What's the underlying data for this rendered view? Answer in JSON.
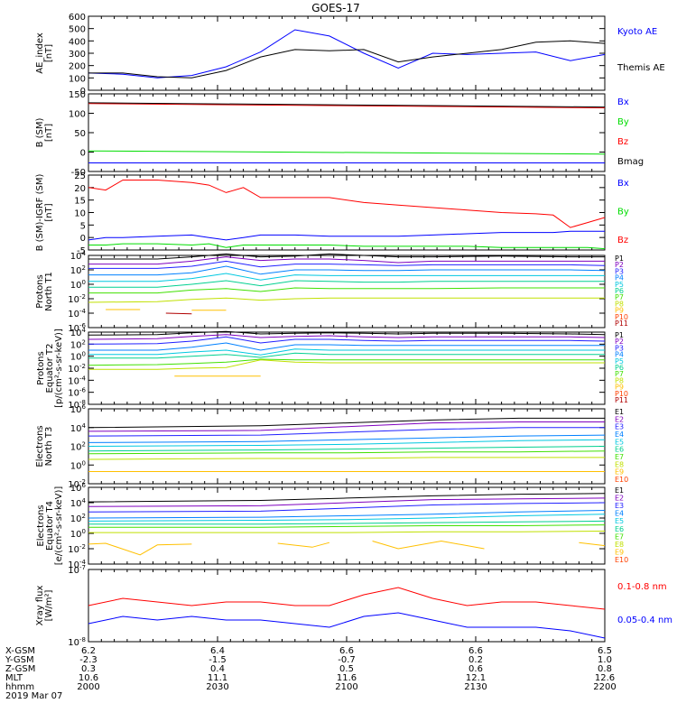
{
  "title": "GOES-17",
  "colors": {
    "black": "#000000",
    "blue": "#0000ff",
    "green": "#00dd00",
    "red": "#ff0000",
    "palette11": [
      "#000000",
      "#7f00bf",
      "#2020ff",
      "#0080ff",
      "#00c8e0",
      "#00d090",
      "#40e000",
      "#c0e000",
      "#ffc000",
      "#ff4000",
      "#b00000"
    ]
  },
  "chart_data": [
    {
      "type": "line",
      "id": "ae",
      "ylabel": [
        "AE_index",
        "[nT]"
      ],
      "ylim": [
        0,
        600
      ],
      "yticks": [
        "0",
        "100",
        "200",
        "300",
        "400",
        "500",
        "600"
      ],
      "x": [
        0,
        4,
        8,
        12,
        16,
        20,
        24,
        28,
        32,
        36,
        40,
        44,
        48,
        52,
        56,
        60
      ],
      "series": [
        {
          "name": "Kyoto AE",
          "color": "#0000ff",
          "values": [
            140,
            130,
            100,
            120,
            190,
            310,
            490,
            440,
            300,
            180,
            300,
            290,
            300,
            310,
            240,
            290
          ]
        },
        {
          "name": "Themis AE",
          "color": "#000000",
          "values": [
            140,
            140,
            110,
            100,
            160,
            270,
            330,
            320,
            330,
            230,
            270,
            300,
            330,
            390,
            400,
            380
          ]
        }
      ]
    },
    {
      "type": "line",
      "id": "bsm",
      "ylabel": [
        "B (SM)",
        "[nT]"
      ],
      "ylim": [
        -50,
        150
      ],
      "yticks": [
        "-50",
        "0",
        "50",
        "100",
        "150"
      ],
      "x": [
        0,
        60
      ],
      "series": [
        {
          "name": "Bx",
          "color": "#0000ff",
          "values": [
            -28,
            -28
          ]
        },
        {
          "name": "By",
          "color": "#00dd00",
          "values": [
            3,
            -5
          ]
        },
        {
          "name": "Bz",
          "color": "#ff0000",
          "values": [
            125,
            114
          ]
        },
        {
          "name": "Bmag",
          "color": "#000000",
          "values": [
            127,
            116
          ]
        }
      ]
    },
    {
      "type": "line",
      "id": "bigrf",
      "ylabel": [
        "B (SM)-IGRF (SM)",
        "[nT]"
      ],
      "ylim": [
        -5,
        25
      ],
      "yticks": [
        "-5",
        "0",
        "5",
        "10",
        "15",
        "20",
        "25"
      ],
      "x": [
        0,
        2,
        4,
        8,
        12,
        14,
        16,
        18,
        20,
        24,
        28,
        32,
        36,
        40,
        44,
        48,
        52,
        54,
        56,
        58,
        60
      ],
      "series": [
        {
          "name": "Bx",
          "color": "#0000ff",
          "values": [
            -1,
            0,
            0,
            0.5,
            1,
            0,
            -1,
            0,
            1,
            1,
            0.5,
            0.5,
            0.5,
            1,
            1.5,
            2,
            2,
            2,
            2.5,
            2.5,
            2.5
          ]
        },
        {
          "name": "By",
          "color": "#00dd00",
          "values": [
            -3,
            -3,
            -2.5,
            -2.5,
            -3,
            -2.5,
            -4,
            -3,
            -3,
            -3,
            -3,
            -3.5,
            -3.5,
            -3.5,
            -3.5,
            -4,
            -4,
            -4,
            -4,
            -4,
            -4.5
          ]
        },
        {
          "name": "Bz",
          "color": "#ff0000",
          "values": [
            20,
            19,
            23,
            23,
            22,
            21,
            18,
            20,
            16,
            16,
            16,
            14,
            13,
            12,
            11,
            10,
            9.5,
            9,
            4,
            6,
            8
          ]
        }
      ]
    },
    {
      "type": "line",
      "id": "pn",
      "ylabel": [
        "Protons",
        "North T1"
      ],
      "yscale": "log",
      "ylim": [
        -6,
        4
      ],
      "yticks": [
        "10^-6",
        "10^-4",
        "10^-2",
        "10^0",
        "10^2",
        "10^4"
      ],
      "labels": [
        "P1",
        "P2",
        "P3",
        "P4",
        "P5",
        "P6",
        "P7",
        "P8",
        "P9",
        "P10",
        "P11"
      ],
      "x": [
        0,
        8,
        12,
        16,
        20,
        24,
        28,
        32,
        36,
        40,
        48,
        56,
        60
      ],
      "series": [
        {
          "name": "P1",
          "values": [
            3.5,
            3.5,
            3.8,
            4.2,
            3.8,
            3.9,
            4.2,
            4.0,
            3.8,
            3.8,
            3.9,
            3.8,
            3.8
          ]
        },
        {
          "name": "P2",
          "values": [
            2.8,
            2.8,
            3.2,
            3.8,
            3.3,
            3.5,
            3.5,
            3.3,
            3.0,
            3.2,
            3.2,
            3.2,
            3.2
          ]
        },
        {
          "name": "P3",
          "values": [
            2.2,
            2.2,
            2.5,
            3.2,
            2.4,
            2.8,
            2.8,
            2.7,
            2.6,
            2.7,
            2.7,
            2.7,
            2.6
          ]
        },
        {
          "name": "P4",
          "values": [
            1.3,
            1.3,
            1.6,
            2.5,
            1.4,
            2.0,
            2.0,
            1.9,
            1.9,
            2.0,
            2.0,
            2.0,
            1.9
          ]
        },
        {
          "name": "P5",
          "values": [
            0.4,
            0.4,
            0.8,
            1.5,
            0.6,
            1.3,
            1.2,
            1.2,
            1.2,
            1.2,
            1.2,
            1.2,
            1.2
          ]
        },
        {
          "name": "P6",
          "values": [
            -0.4,
            -0.4,
            0.0,
            0.5,
            -0.2,
            0.5,
            0.4,
            0.3,
            0.3,
            0.4,
            0.4,
            0.4,
            0.4
          ]
        },
        {
          "name": "P7",
          "values": [
            -1.2,
            -1.2,
            -0.8,
            -0.6,
            -1.0,
            -0.5,
            -0.6,
            -0.6,
            -0.6,
            -0.6,
            -0.5,
            -0.5,
            -0.5
          ]
        },
        {
          "name": "P8",
          "values": [
            -2.5,
            -2.4,
            -2.1,
            -1.9,
            -2.2,
            -2.0,
            -1.9,
            -1.9,
            -1.9,
            -1.9,
            -1.9,
            -1.9,
            -1.9
          ]
        }
      ],
      "segments": [
        {
          "name": "P9",
          "x": [
            2,
            6
          ],
          "y": [
            -3.5,
            -3.5
          ]
        },
        {
          "name": "P9",
          "x": [
            12,
            16
          ],
          "y": [
            -3.6,
            -3.6
          ]
        },
        {
          "name": "P11",
          "x": [
            9,
            12
          ],
          "y": [
            -4.0,
            -4.1
          ]
        }
      ]
    },
    {
      "type": "line",
      "id": "pe",
      "ylabel": [
        "Protons",
        "Equator T2",
        "[p/(cm²-s-sr-keV)]"
      ],
      "yscale": "log",
      "ylim": [
        -8,
        4
      ],
      "yticks": [
        "10^-8",
        "10^-6",
        "10^-4",
        "10^-2",
        "10^0",
        "10^2",
        "10^4"
      ],
      "labels": [
        "P1",
        "P2",
        "P3",
        "P4",
        "P5",
        "P6",
        "P7",
        "P8",
        "P9",
        "P10",
        "P11"
      ],
      "x": [
        0,
        8,
        12,
        16,
        20,
        24,
        28,
        32,
        36,
        40,
        48,
        56,
        60
      ],
      "series": [
        {
          "name": "P1",
          "values": [
            3.5,
            3.6,
            3.9,
            4.1,
            3.7,
            3.8,
            3.9,
            3.8,
            3.7,
            3.8,
            3.8,
            3.7,
            3.6
          ]
        },
        {
          "name": "P2",
          "values": [
            2.8,
            2.9,
            3.3,
            3.6,
            3.1,
            3.3,
            3.4,
            3.2,
            3.1,
            3.2,
            3.2,
            3.2,
            3.1
          ]
        },
        {
          "name": "P3",
          "values": [
            2.0,
            2.1,
            2.5,
            3.2,
            2.2,
            2.8,
            2.8,
            2.6,
            2.5,
            2.6,
            2.6,
            2.6,
            2.5
          ]
        },
        {
          "name": "P4",
          "values": [
            1.0,
            1.0,
            1.5,
            2.2,
            1.0,
            1.9,
            1.9,
            1.8,
            1.8,
            1.8,
            1.8,
            1.8,
            1.8
          ]
        },
        {
          "name": "P5",
          "values": [
            0.3,
            0.3,
            0.7,
            1.0,
            0.2,
            1.2,
            1.0,
            1.0,
            1.0,
            1.0,
            1.0,
            1.0,
            1.0
          ]
        },
        {
          "name": "P6",
          "values": [
            -0.3,
            -0.3,
            0.0,
            0.3,
            -0.2,
            0.5,
            0.3,
            0.3,
            0.3,
            0.3,
            0.3,
            0.3,
            0.3
          ]
        },
        {
          "name": "P7",
          "values": [
            -1.5,
            -1.4,
            -1.2,
            -1.0,
            -0.5,
            -0.6,
            -0.6,
            -0.6,
            -0.6,
            -0.6,
            -0.6,
            -0.6,
            -0.6
          ]
        },
        {
          "name": "P8",
          "values": [
            -2.2,
            -2.2,
            -2.0,
            -1.9,
            -0.6,
            -1.0,
            -1.1,
            -1.1,
            -1.1,
            -1.1,
            -1.1,
            -1.1,
            -1.1
          ]
        }
      ],
      "segments": [
        {
          "name": "P9",
          "x": [
            10,
            20
          ],
          "y": [
            -3.3,
            -3.3
          ]
        }
      ]
    },
    {
      "type": "line",
      "id": "en",
      "ylabel": [
        "Electrons",
        "North T3"
      ],
      "yscale": "log",
      "ylim": [
        -2,
        6
      ],
      "yticks": [
        "10^-2",
        "10^0",
        "10^2",
        "10^4",
        "10^6"
      ],
      "labels": [
        "E1",
        "E2",
        "E3",
        "E4",
        "E5",
        "E6",
        "E7",
        "E8",
        "E9",
        "E10"
      ],
      "x": [
        0,
        20,
        30,
        40,
        50,
        60
      ],
      "series": [
        {
          "name": "E1",
          "values": [
            4.0,
            4.2,
            4.5,
            4.8,
            5.0,
            5.0
          ]
        },
        {
          "name": "E2",
          "values": [
            3.6,
            3.7,
            4.1,
            4.5,
            4.6,
            4.6
          ]
        },
        {
          "name": "E3",
          "values": [
            3.1,
            3.2,
            3.5,
            3.8,
            4.0,
            4.0
          ]
        },
        {
          "name": "E4",
          "values": [
            2.4,
            2.5,
            2.7,
            2.9,
            3.1,
            3.2
          ]
        },
        {
          "name": "E5",
          "values": [
            2.0,
            2.1,
            2.2,
            2.4,
            2.6,
            2.7
          ]
        },
        {
          "name": "E6",
          "values": [
            1.5,
            1.6,
            1.7,
            1.8,
            1.9,
            2.0
          ]
        },
        {
          "name": "E7",
          "values": [
            1.2,
            1.3,
            1.3,
            1.4,
            1.4,
            1.5
          ]
        },
        {
          "name": "E8",
          "values": [
            0.6,
            0.7,
            0.7,
            0.8,
            0.8,
            0.8
          ]
        },
        {
          "name": "E9",
          "values": [
            -0.7,
            -0.7,
            -0.7,
            -0.7,
            -0.7,
            -0.7
          ]
        }
      ]
    },
    {
      "type": "line",
      "id": "ee",
      "ylabel": [
        "Electrons",
        "Equator T4",
        "[e/(cm²-s-sr-keV)]"
      ],
      "yscale": "log",
      "ylim": [
        -4,
        6
      ],
      "yticks": [
        "10^-4",
        "10^-2",
        "10^0",
        "10^2",
        "10^4",
        "10^6"
      ],
      "labels": [
        "E1",
        "E2",
        "E3",
        "E4",
        "E5",
        "E6",
        "E7",
        "E8",
        "E9",
        "E10"
      ],
      "x": [
        0,
        20,
        30,
        40,
        50,
        60
      ],
      "series": [
        {
          "name": "E1",
          "values": [
            4.1,
            4.3,
            4.6,
            4.9,
            5.1,
            5.2
          ]
        },
        {
          "name": "E2",
          "values": [
            3.5,
            3.6,
            4.0,
            4.4,
            4.5,
            4.6
          ]
        },
        {
          "name": "E3",
          "values": [
            2.8,
            2.9,
            3.3,
            3.7,
            3.9,
            4.0
          ]
        },
        {
          "name": "E4",
          "values": [
            2.0,
            2.1,
            2.3,
            2.5,
            2.8,
            3.0
          ]
        },
        {
          "name": "E5",
          "values": [
            1.6,
            1.7,
            1.8,
            2.0,
            2.3,
            2.5
          ]
        },
        {
          "name": "E6",
          "values": [
            1.2,
            1.2,
            1.3,
            1.4,
            1.5,
            1.6
          ]
        },
        {
          "name": "E7",
          "values": [
            0.8,
            0.8,
            0.9,
            1.0,
            1.0,
            1.1
          ]
        },
        {
          "name": "E8",
          "values": [
            0.1,
            0.1,
            0.1,
            0.2,
            0.2,
            0.3
          ]
        }
      ],
      "segments": [
        {
          "name": "E9",
          "x": [
            0,
            2,
            6,
            8,
            12
          ],
          "y": [
            -1.4,
            -1.3,
            -2.8,
            -1.5,
            -1.4
          ]
        },
        {
          "name": "E9",
          "x": [
            22,
            26,
            28
          ],
          "y": [
            -1.3,
            -1.8,
            -1.2
          ]
        },
        {
          "name": "E9",
          "x": [
            33,
            36,
            41,
            46
          ],
          "y": [
            -1.0,
            -2.0,
            -1.0,
            -2.0
          ]
        },
        {
          "name": "E9",
          "x": [
            57,
            60
          ],
          "y": [
            -1.2,
            -1.6
          ]
        }
      ]
    },
    {
      "type": "line",
      "id": "xray",
      "ylabel": [
        "Xray flux",
        "[W/m²]"
      ],
      "yscale": "log",
      "ylim": [
        -8,
        -7
      ],
      "yticks": [
        "10^-8",
        "10^-7"
      ],
      "x": [
        0,
        4,
        8,
        12,
        16,
        20,
        24,
        28,
        32,
        36,
        40,
        44,
        48,
        52,
        56,
        60
      ],
      "series": [
        {
          "name": "0.1-0.8 nm",
          "color": "#ff0000",
          "values": [
            -7.5,
            -7.4,
            -7.45,
            -7.5,
            -7.45,
            -7.45,
            -7.5,
            -7.5,
            -7.35,
            -7.25,
            -7.4,
            -7.5,
            -7.45,
            -7.45,
            -7.5,
            -7.55
          ]
        },
        {
          "name": "0.05-0.4 nm",
          "color": "#0000ff",
          "values": [
            -7.75,
            -7.65,
            -7.7,
            -7.65,
            -7.7,
            -7.7,
            -7.75,
            -7.8,
            -7.65,
            -7.6,
            -7.7,
            -7.8,
            -7.8,
            -7.8,
            -7.85,
            -7.95
          ]
        }
      ]
    }
  ],
  "xaxis": {
    "rows": [
      {
        "label": "X-GSM",
        "values": [
          "6.2",
          "6.4",
          "6.6",
          "6.6",
          "6.5"
        ]
      },
      {
        "label": "Y-GSM",
        "values": [
          "-2.3",
          "-1.5",
          "-0.7",
          "0.2",
          "1.0"
        ]
      },
      {
        "label": "Z-GSM",
        "values": [
          "0.3",
          "0.4",
          "0.5",
          "0.6",
          "0.8"
        ]
      },
      {
        "label": "MLT",
        "values": [
          "10.6",
          "11.1",
          "11.6",
          "12.1",
          "12.6"
        ]
      },
      {
        "label": "hhmm",
        "values": [
          "2000",
          "2030",
          "2100",
          "2130",
          "2200"
        ]
      }
    ],
    "date": "2019 Mar 07",
    "range": [
      0,
      60
    ],
    "ticks": [
      0,
      15,
      30,
      45,
      60
    ]
  }
}
